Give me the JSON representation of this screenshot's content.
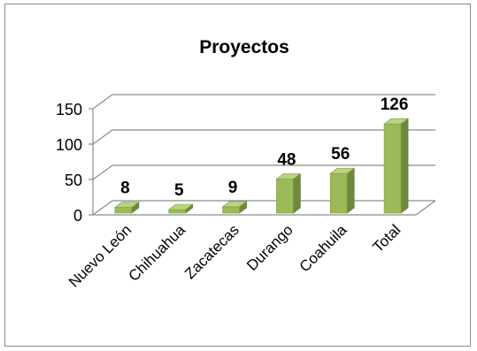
{
  "chart_data": {
    "type": "bar",
    "title": "Proyectos",
    "categories": [
      "Nuevo León",
      "Chihuahua",
      "Zacatecas",
      "Durango",
      "Coahuila",
      "Total"
    ],
    "values": [
      8,
      5,
      9,
      48,
      56,
      126
    ],
    "data_labels": [
      "8",
      "5",
      "9",
      "48",
      "56",
      "126"
    ],
    "yticks": [
      "0",
      "50",
      "100",
      "150"
    ],
    "ylim": [
      0,
      150
    ],
    "xlabel": "",
    "ylabel": "",
    "grid": true,
    "legend": "none",
    "style": "3d-column",
    "bar_color": "#9bbb59"
  }
}
